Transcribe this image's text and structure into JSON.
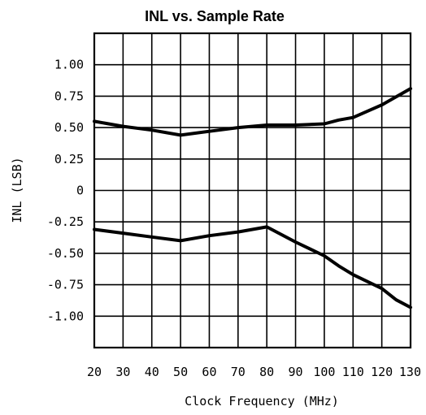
{
  "chart_data": {
    "type": "line",
    "title": "INL vs. Sample Rate",
    "xlabel": "Clock Frequency (MHz)",
    "ylabel": "INL (LSB)",
    "xlim": [
      20,
      130
    ],
    "ylim": [
      -1.25,
      1.25
    ],
    "x_ticks": [
      20,
      30,
      40,
      50,
      60,
      70,
      80,
      90,
      100,
      110,
      120,
      130
    ],
    "x_tick_labels": [
      "20",
      "30",
      "40",
      "50",
      "60",
      "70",
      "80",
      "90",
      "100",
      "110",
      "120",
      "130"
    ],
    "y_ticks": [
      1.0,
      0.75,
      0.5,
      0.25,
      0,
      -0.25,
      -0.5,
      -0.75,
      -1.0
    ],
    "y_tick_labels": [
      "1.00",
      "0.75",
      "0.50",
      "0.25",
      "0",
      "-0.25",
      "-0.50",
      "-0.75",
      "-1.00"
    ],
    "y_grid_ticks": [
      1.25,
      1.0,
      0.75,
      0.5,
      0.25,
      0,
      -0.25,
      -0.5,
      -0.75,
      -1.0,
      -1.25
    ],
    "grid": true,
    "series": [
      {
        "x": [
          20,
          30,
          40,
          50,
          60,
          70,
          80,
          90,
          100,
          105,
          110,
          120,
          130
        ],
        "y": [
          0.55,
          0.51,
          0.48,
          0.44,
          0.47,
          0.5,
          0.52,
          0.52,
          0.53,
          0.56,
          0.58,
          0.68,
          0.81
        ]
      },
      {
        "x": [
          20,
          30,
          40,
          50,
          60,
          70,
          80,
          90,
          100,
          105,
          110,
          120,
          125,
          130
        ],
        "y": [
          -0.31,
          -0.34,
          -0.37,
          -0.4,
          -0.36,
          -0.33,
          -0.29,
          -0.41,
          -0.52,
          -0.6,
          -0.67,
          -0.78,
          -0.87,
          -0.93
        ]
      }
    ]
  }
}
